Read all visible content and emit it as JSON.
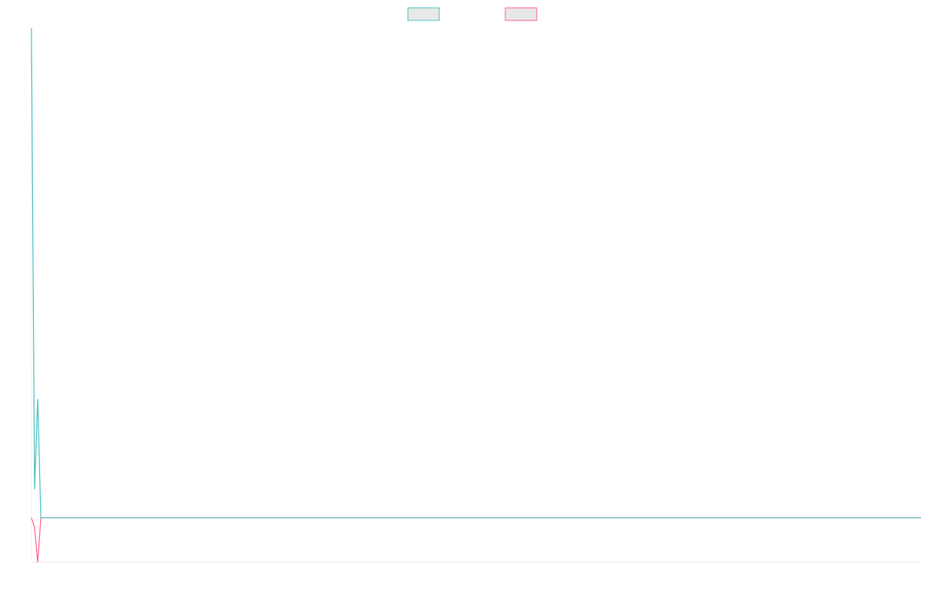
{
  "chart_data": {
    "type": "line",
    "legend": "top",
    "x": [
      0,
      1,
      2,
      3,
      283
    ],
    "xlim": [
      0,
      283
    ],
    "ylim": [
      -10,
      110
    ],
    "series": [
      {
        "color": "#4bc0c0",
        "values": [
          110,
          6.4,
          26.7,
          0,
          0
        ]
      },
      {
        "color": "#ff6384",
        "values": [
          0,
          -2.2,
          -10,
          0,
          0
        ]
      }
    ]
  }
}
